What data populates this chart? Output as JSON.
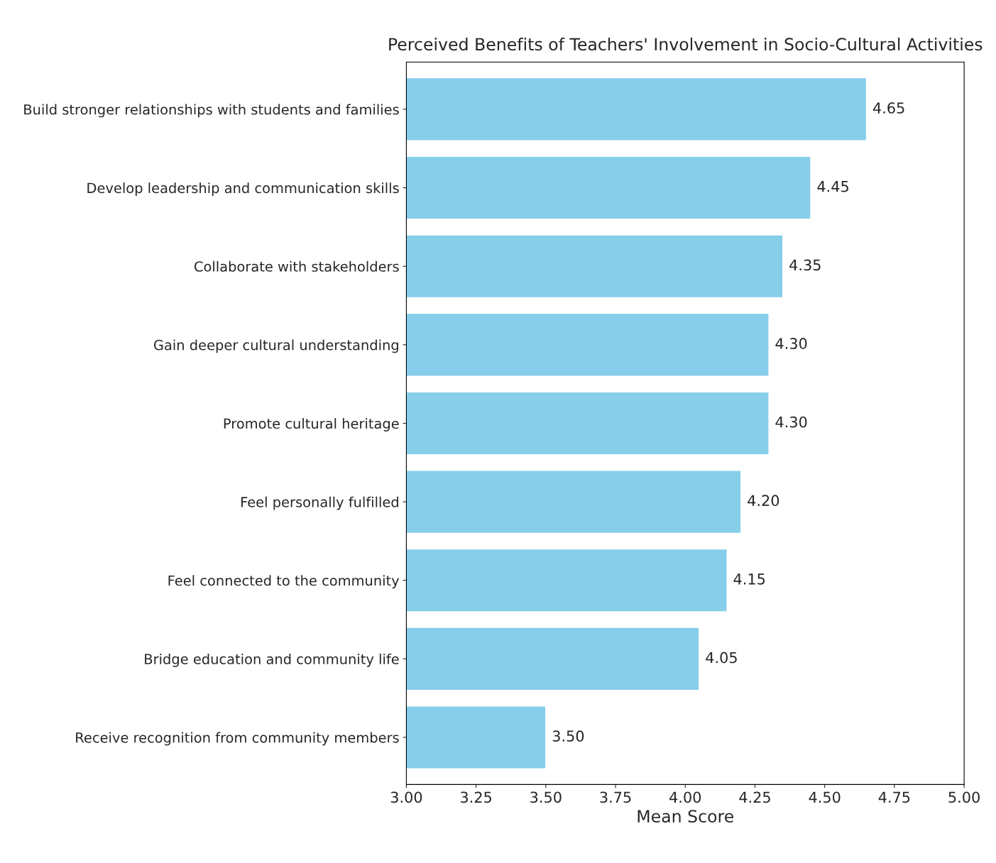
{
  "chart_data": {
    "type": "bar",
    "orientation": "horizontal",
    "title": "Perceived Benefits of Teachers' Involvement in Socio-Cultural Activities",
    "xlabel": "Mean Score",
    "categories": [
      "Build stronger relationships with students and families",
      "Develop leadership and communication skills",
      "Collaborate with stakeholders",
      "Gain deeper cultural understanding",
      "Promote cultural heritage",
      "Feel personally fulfilled",
      "Feel connected to the community",
      "Bridge education and community life",
      "Receive recognition from community members"
    ],
    "values": [
      4.65,
      4.45,
      4.35,
      4.3,
      4.3,
      4.2,
      4.15,
      4.05,
      3.5
    ],
    "value_labels": [
      "4.65",
      "4.45",
      "4.35",
      "4.30",
      "4.30",
      "4.20",
      "4.15",
      "4.05",
      "3.50"
    ],
    "color": "#87ceeb",
    "xlim": [
      3,
      5
    ],
    "xticks": [
      {
        "value": 3,
        "label": "3.00"
      },
      {
        "value": 3.25,
        "label": "3.25"
      },
      {
        "value": 3.5,
        "label": "3.50"
      },
      {
        "value": 3.75,
        "label": "3.75"
      },
      {
        "value": 4,
        "label": "4.00"
      },
      {
        "value": 4.25,
        "label": "4.25"
      },
      {
        "value": 4.5,
        "label": "4.50"
      },
      {
        "value": 4.75,
        "label": "4.75"
      },
      {
        "value": 5,
        "label": "5.00"
      }
    ],
    "grid": false,
    "legend": false
  }
}
